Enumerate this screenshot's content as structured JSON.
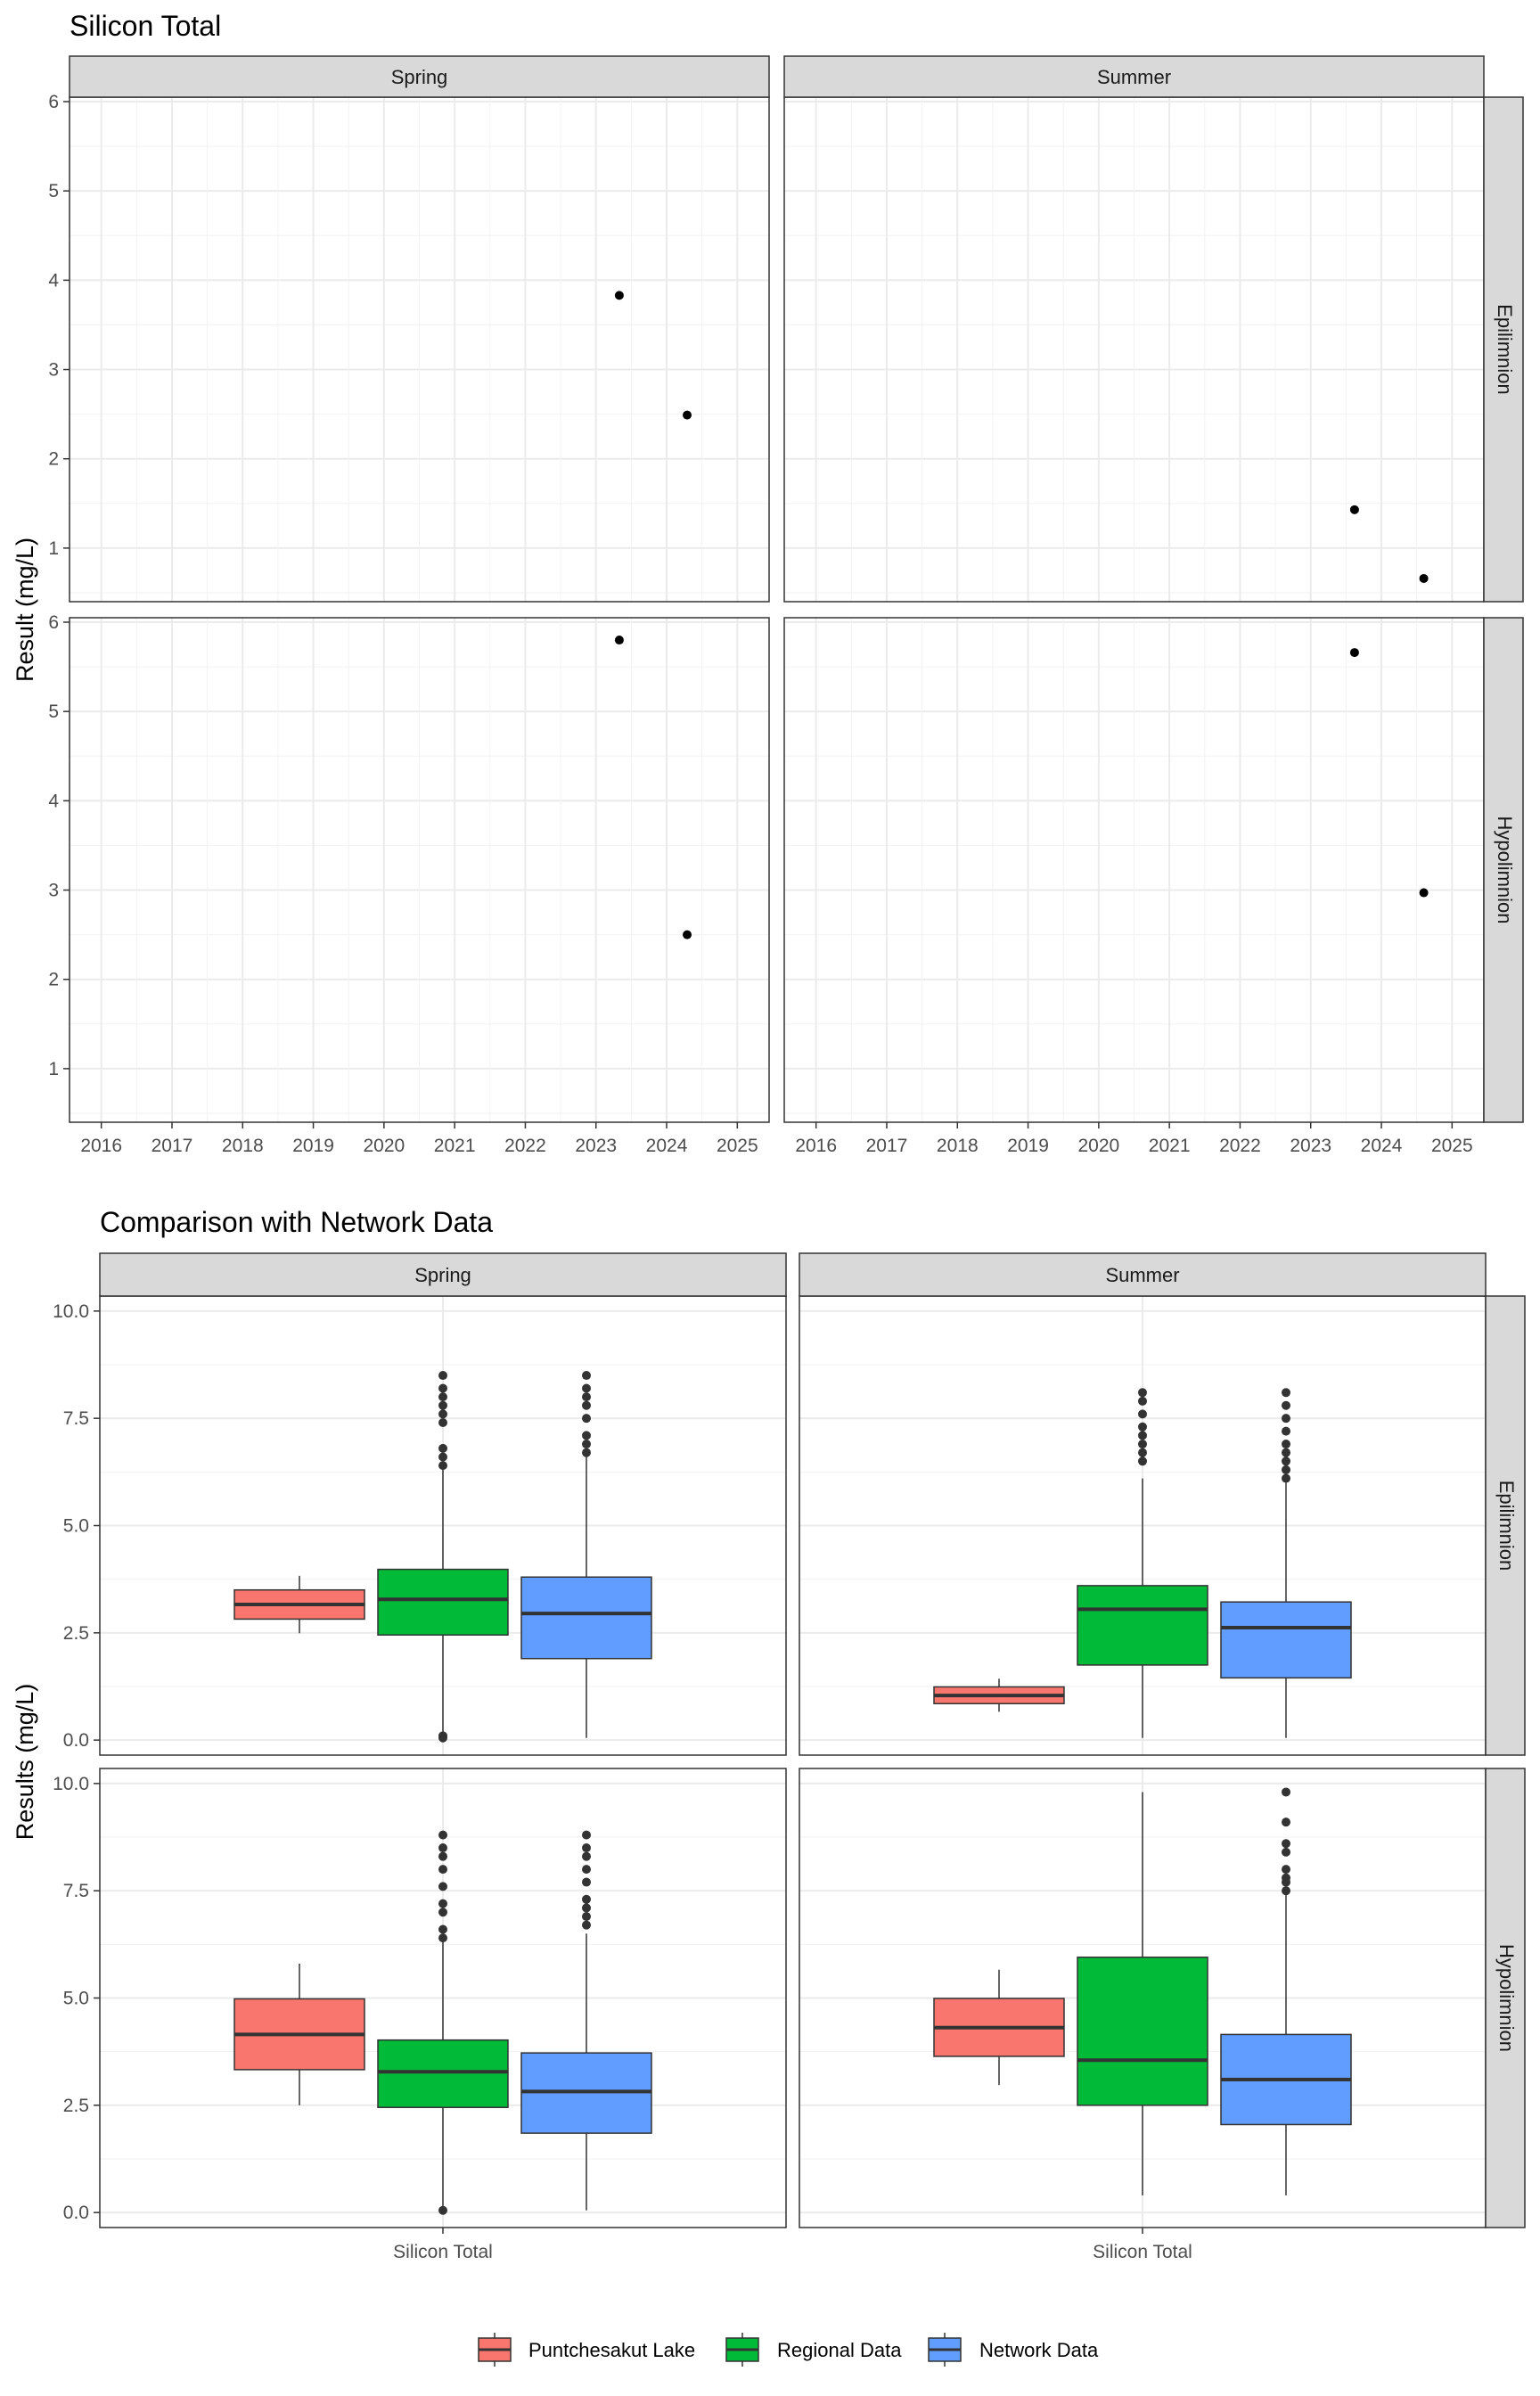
{
  "chart_data": [
    {
      "type": "scatter",
      "title": "Silicon Total",
      "ylabel": "Result (mg/L)",
      "xlabel": "",
      "x_ticks": [
        "2016",
        "2017",
        "2018",
        "2019",
        "2020",
        "2021",
        "2022",
        "2023",
        "2024",
        "2025"
      ],
      "xlim": [
        2015.55,
        2025.45
      ],
      "y_ticks": [
        "1",
        "2",
        "3",
        "4",
        "5",
        "6"
      ],
      "ylim": [
        0.4,
        6.05
      ],
      "grid": true,
      "facet_columns": [
        "Spring",
        "Summer"
      ],
      "facet_rows": [
        "Epilimnion",
        "Hypolimnion"
      ],
      "panels": [
        {
          "season": "Spring",
          "layer": "Epilimnion",
          "points": [
            {
              "x": 2023.33,
              "y": 3.83
            },
            {
              "x": 2024.29,
              "y": 2.49
            }
          ]
        },
        {
          "season": "Summer",
          "layer": "Epilimnion",
          "points": [
            {
              "x": 2023.62,
              "y": 1.43
            },
            {
              "x": 2024.6,
              "y": 0.66
            }
          ]
        },
        {
          "season": "Spring",
          "layer": "Hypolimnion",
          "points": [
            {
              "x": 2023.33,
              "y": 5.8
            },
            {
              "x": 2024.29,
              "y": 2.5
            }
          ]
        },
        {
          "season": "Summer",
          "layer": "Hypolimnion",
          "points": [
            {
              "x": 2023.62,
              "y": 5.66
            },
            {
              "x": 2024.6,
              "y": 2.97
            }
          ]
        }
      ]
    },
    {
      "type": "box",
      "title": "Comparison with Network Data",
      "ylabel": "Results (mg/L)",
      "xlabel": "",
      "category": "Silicon Total",
      "y_ticks": [
        "0.0",
        "2.5",
        "5.0",
        "7.5",
        "10.0"
      ],
      "ylim": [
        -0.35,
        10.35
      ],
      "grid": true,
      "facet_columns": [
        "Spring",
        "Summer"
      ],
      "facet_rows": [
        "Epilimnion",
        "Hypolimnion"
      ],
      "legend_position": "bottom",
      "series": [
        {
          "name": "Puntchesakut Lake",
          "color": "#F8766D"
        },
        {
          "name": "Regional Data",
          "color": "#00BA38"
        },
        {
          "name": "Network Data",
          "color": "#619CFF"
        }
      ],
      "panels": [
        {
          "season": "Spring",
          "layer": "Epilimnion",
          "boxes": [
            {
              "series": "Puntchesakut Lake",
              "whisker_low": 2.49,
              "q1": 2.82,
              "median": 3.16,
              "q3": 3.5,
              "whisker_high": 3.83,
              "outliers": []
            },
            {
              "series": "Regional Data",
              "whisker_low": 0.1,
              "q1": 2.45,
              "median": 3.28,
              "q3": 3.98,
              "whisker_high": 6.3,
              "outliers": [
                0.05,
                0.1,
                6.4,
                6.6,
                6.8,
                7.4,
                7.6,
                7.8,
                8.0,
                8.2,
                8.5
              ]
            },
            {
              "series": "Network Data",
              "whisker_low": 0.05,
              "q1": 1.9,
              "median": 2.95,
              "q3": 3.8,
              "whisker_high": 6.6,
              "outliers": [
                6.7,
                6.9,
                7.1,
                7.5,
                7.8,
                8.0,
                8.2,
                8.5
              ]
            }
          ]
        },
        {
          "season": "Summer",
          "layer": "Epilimnion",
          "boxes": [
            {
              "series": "Puntchesakut Lake",
              "whisker_low": 0.66,
              "q1": 0.85,
              "median": 1.04,
              "q3": 1.24,
              "whisker_high": 1.43,
              "outliers": []
            },
            {
              "series": "Regional Data",
              "whisker_low": 0.05,
              "q1": 1.75,
              "median": 3.05,
              "q3": 3.6,
              "whisker_high": 6.1,
              "outliers": [
                6.5,
                6.7,
                6.9,
                7.1,
                7.3,
                7.6,
                7.9,
                8.1
              ]
            },
            {
              "series": "Network Data",
              "whisker_low": 0.05,
              "q1": 1.45,
              "median": 2.62,
              "q3": 3.22,
              "whisker_high": 6.0,
              "outliers": [
                6.1,
                6.3,
                6.5,
                6.7,
                6.9,
                7.2,
                7.5,
                7.8,
                8.1
              ]
            }
          ]
        },
        {
          "season": "Spring",
          "layer": "Hypolimnion",
          "boxes": [
            {
              "series": "Puntchesakut Lake",
              "whisker_low": 2.5,
              "q1": 3.33,
              "median": 4.15,
              "q3": 4.98,
              "whisker_high": 5.8,
              "outliers": []
            },
            {
              "series": "Regional Data",
              "whisker_low": 0.1,
              "q1": 2.45,
              "median": 3.28,
              "q3": 4.02,
              "whisker_high": 6.3,
              "outliers": [
                0.05,
                6.4,
                6.6,
                7.0,
                7.2,
                7.6,
                8.0,
                8.3,
                8.5,
                8.8
              ]
            },
            {
              "series": "Network Data",
              "whisker_low": 0.05,
              "q1": 1.85,
              "median": 2.82,
              "q3": 3.72,
              "whisker_high": 6.5,
              "outliers": [
                6.7,
                6.9,
                7.1,
                7.3,
                7.7,
                8.0,
                8.3,
                8.5,
                8.8
              ]
            }
          ]
        },
        {
          "season": "Summer",
          "layer": "Hypolimnion",
          "boxes": [
            {
              "series": "Puntchesakut Lake",
              "whisker_low": 2.97,
              "q1": 3.64,
              "median": 4.31,
              "q3": 4.99,
              "whisker_high": 5.66,
              "outliers": []
            },
            {
              "series": "Regional Data",
              "whisker_low": 0.4,
              "q1": 2.5,
              "median": 3.55,
              "q3": 5.95,
              "whisker_high": 9.8,
              "outliers": []
            },
            {
              "series": "Network Data",
              "whisker_low": 0.4,
              "q1": 2.05,
              "median": 3.1,
              "q3": 4.15,
              "whisker_high": 7.4,
              "outliers": [
                7.5,
                7.7,
                7.8,
                8.0,
                8.4,
                8.6,
                9.1,
                9.8
              ]
            }
          ]
        }
      ]
    }
  ]
}
